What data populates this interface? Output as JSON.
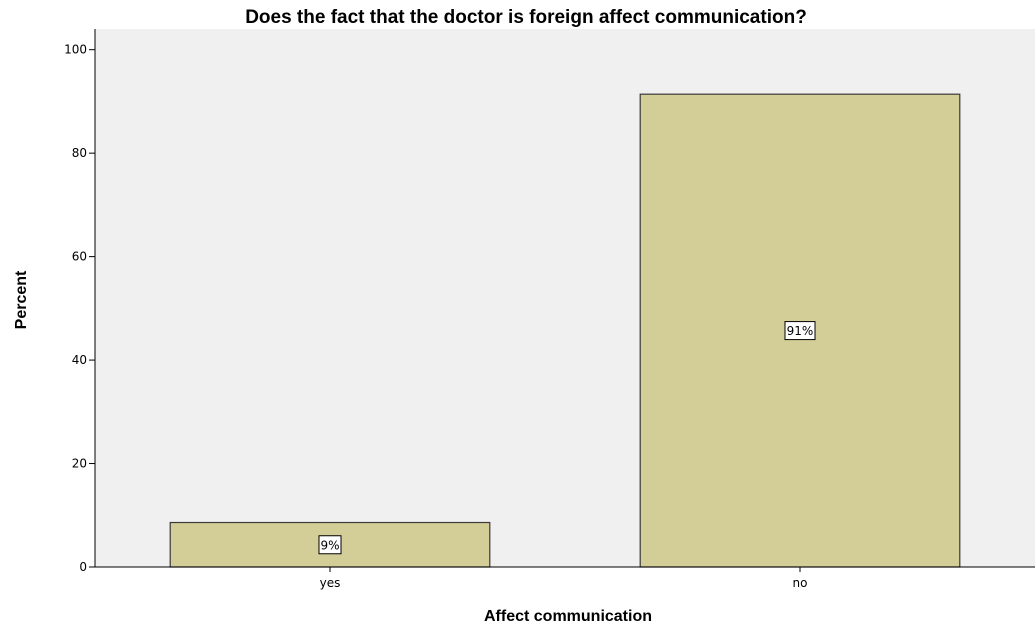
{
  "chart_data": {
    "type": "bar",
    "title": "Does the fact that the doctor is foreign affect communication?",
    "xlabel": "Affect communication",
    "ylabel": "Percent",
    "categories": [
      "yes",
      "no"
    ],
    "values": [
      8.6,
      91.4
    ],
    "data_labels": [
      "9%",
      "91%"
    ],
    "ylim": [
      0,
      104
    ],
    "yticks": [
      0,
      20,
      40,
      60,
      80,
      100
    ],
    "grid": false,
    "legend": "none",
    "colors": {
      "plot_background": "#f0f0f0",
      "bar_fill": "#d3ce97",
      "bar_stroke": "#3a3a3a",
      "axis": "#000000"
    }
  }
}
